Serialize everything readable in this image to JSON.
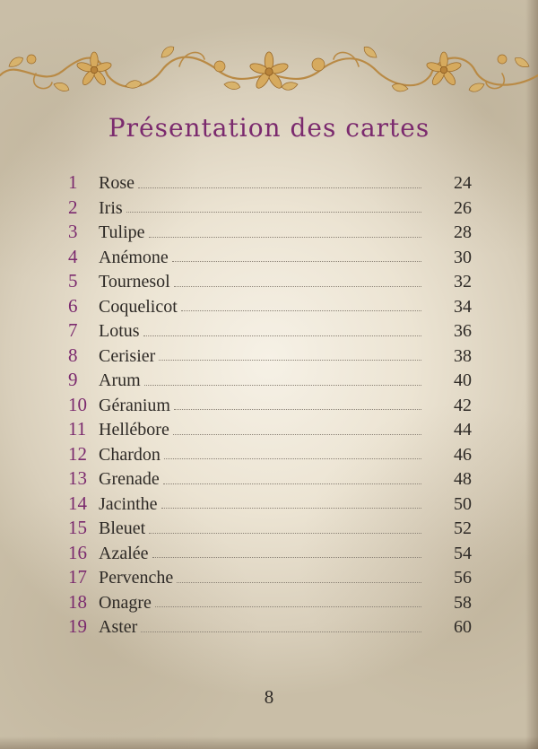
{
  "title": "Présentation des cartes",
  "entries": [
    {
      "num": "1",
      "name": "Rose",
      "page": "24"
    },
    {
      "num": "2",
      "name": "Iris",
      "page": "26"
    },
    {
      "num": "3",
      "name": "Tulipe",
      "page": "28"
    },
    {
      "num": "4",
      "name": "Anémone",
      "page": "30"
    },
    {
      "num": "5",
      "name": "Tournesol",
      "page": "32"
    },
    {
      "num": "6",
      "name": "Coquelicot",
      "page": "34"
    },
    {
      "num": "7",
      "name": "Lotus",
      "page": "36"
    },
    {
      "num": "8",
      "name": "Cerisier",
      "page": "38"
    },
    {
      "num": "9",
      "name": "Arum",
      "page": "40"
    },
    {
      "num": "10",
      "name": "Géranium",
      "page": "42"
    },
    {
      "num": "11",
      "name": "Hellébore",
      "page": "44"
    },
    {
      "num": "12",
      "name": "Chardon",
      "page": "46"
    },
    {
      "num": "13",
      "name": "Grenade",
      "page": "48"
    },
    {
      "num": "14",
      "name": "Jacinthe",
      "page": "50"
    },
    {
      "num": "15",
      "name": "Bleuet",
      "page": "52"
    },
    {
      "num": "16",
      "name": "Azalée",
      "page": "54"
    },
    {
      "num": "17",
      "name": "Pervenche",
      "page": "56"
    },
    {
      "num": "18",
      "name": "Onagre",
      "page": "58"
    },
    {
      "num": "19",
      "name": "Aster",
      "page": "60"
    }
  ],
  "page_number": "8",
  "colors": {
    "accent": "#7b2a6e",
    "text": "#2e2a26",
    "ornament": "#c99a4f"
  },
  "decorations": {
    "header_ornament": "floral-scroll-border-icon"
  }
}
